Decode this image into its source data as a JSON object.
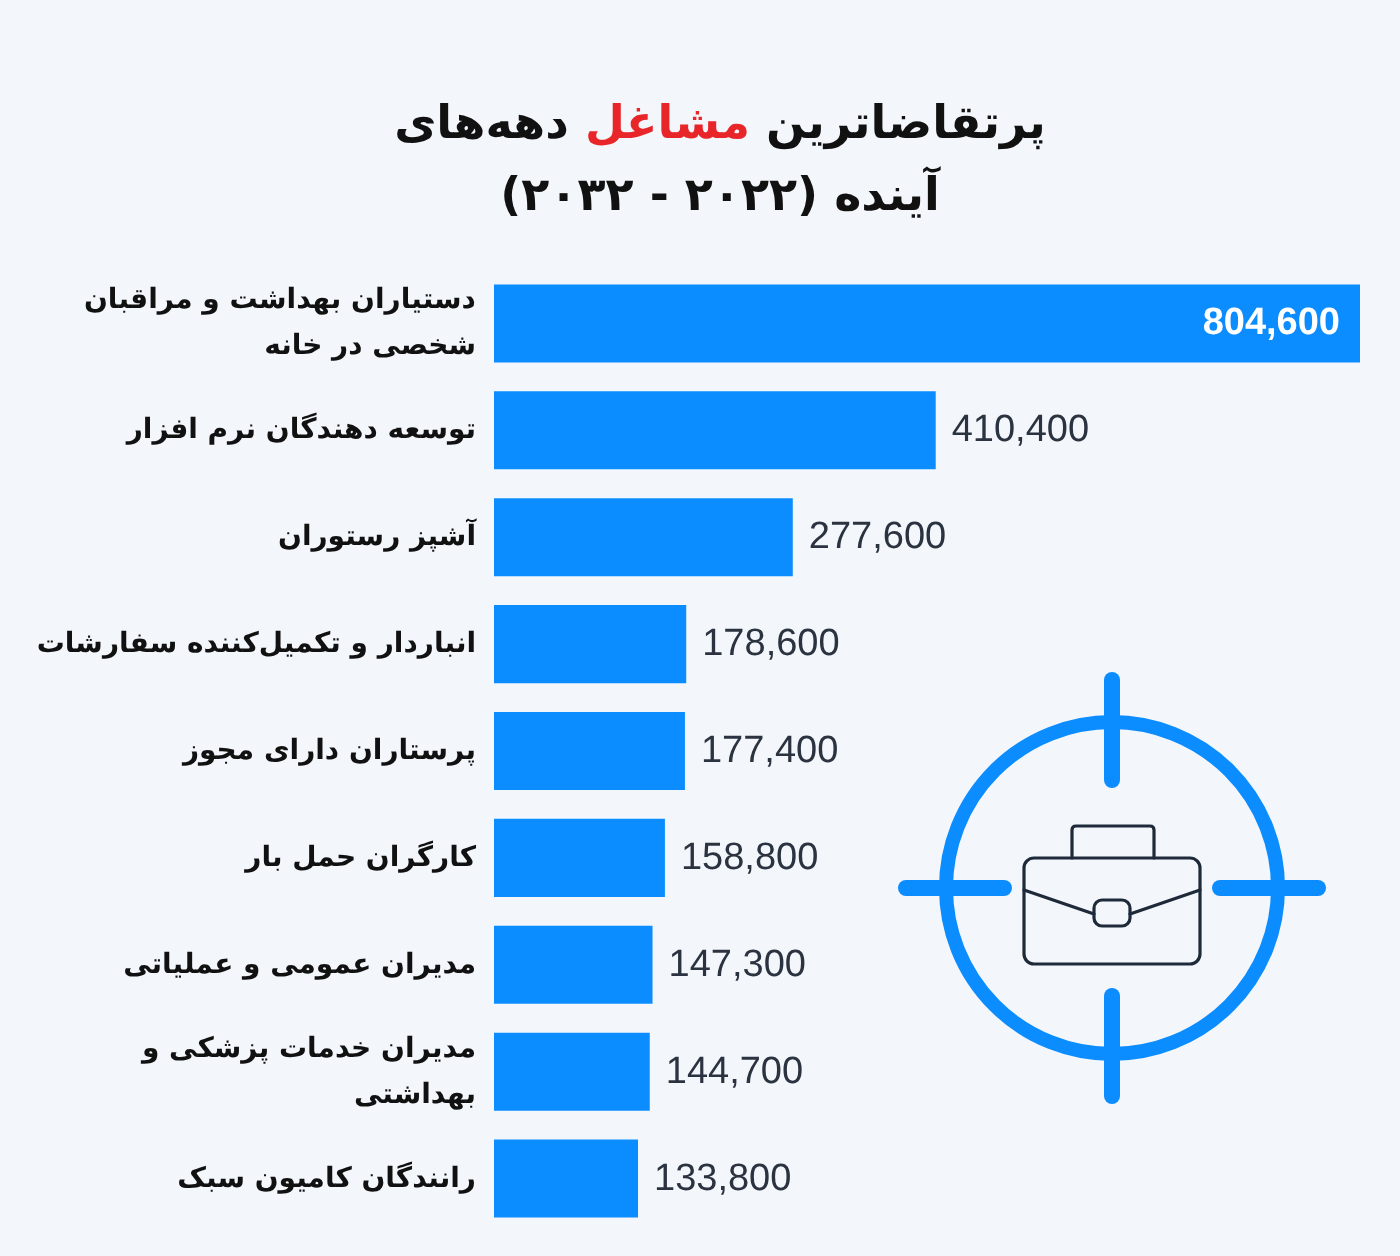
{
  "chart_data": {
    "type": "bar",
    "orientation": "horizontal",
    "title": "پرتقاضاترین مشاغل دهه‌های آینده (۲۰۲۲ - ۲۰۳۲)",
    "categories": [
      "دستیاران بهداشت و مراقبان شخصی در خانه",
      "توسعه دهندگان نرم افزار",
      "آشپز رستوران",
      "انباردار و تکمیل‌کننده سفارشات",
      "پرستاران دارای مجوز",
      "کارگران حمل بار",
      "مدیران عمومی و عملیاتی",
      "مدیران خدمات پزشکی و بهداشتی",
      "رانندگان کامیون سبک"
    ],
    "values": [
      804600,
      410400,
      277600,
      178600,
      177400,
      158800,
      147300,
      144700,
      133800
    ],
    "value_labels": [
      "804,600",
      "410,400",
      "277,600",
      "178,600",
      "177,400",
      "158,800",
      "147,300",
      "144,700",
      "133,800"
    ],
    "color": "#0b8cff"
  }
}
